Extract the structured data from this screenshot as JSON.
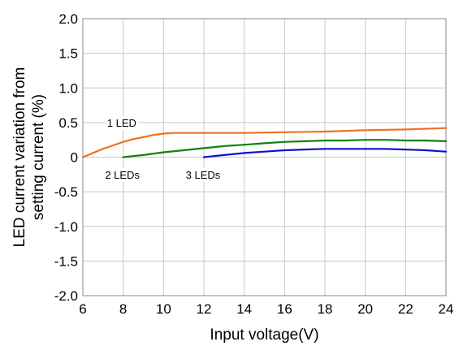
{
  "chart_data": {
    "type": "line",
    "title": "",
    "xlabel": "Input voltage(V)",
    "ylabel_lines": [
      "LED current  variation from",
      "setting current (%)"
    ],
    "xlim": [
      6,
      24
    ],
    "ylim": [
      -2.0,
      2.0
    ],
    "x_ticks": [
      6,
      8,
      10,
      12,
      14,
      16,
      18,
      20,
      22,
      24
    ],
    "x_tick_labels": [
      "6",
      "8",
      "10",
      "12",
      "14",
      "16",
      "18",
      "20",
      "22",
      "24"
    ],
    "y_ticks": [
      2.0,
      1.5,
      1.0,
      0.5,
      0,
      -0.5,
      -1.0,
      -1.5,
      -2.0
    ],
    "y_tick_labels": [
      "2.0",
      "1.5",
      "1.0",
      "0.5",
      "0",
      "-0.5",
      "-1.0",
      "-1.5",
      "-2.0"
    ],
    "grid": true,
    "legend": "none",
    "series": [
      {
        "name": "1 LED",
        "color": "#f07020",
        "x": [
          6,
          6.5,
          7,
          7.5,
          8,
          8.5,
          9,
          9.5,
          10,
          10.5,
          11,
          12,
          14,
          16,
          18,
          20,
          22,
          24
        ],
        "y": [
          0.0,
          0.06,
          0.12,
          0.17,
          0.22,
          0.26,
          0.29,
          0.32,
          0.34,
          0.35,
          0.35,
          0.35,
          0.35,
          0.36,
          0.37,
          0.39,
          0.4,
          0.42
        ]
      },
      {
        "name": "2 LEDs",
        "color": "#108010",
        "x": [
          8,
          9,
          10,
          11,
          12,
          13,
          14,
          15,
          16,
          17,
          18,
          19,
          20,
          21,
          22,
          23,
          24
        ],
        "y": [
          0.0,
          0.03,
          0.07,
          0.1,
          0.13,
          0.16,
          0.18,
          0.2,
          0.22,
          0.23,
          0.24,
          0.24,
          0.25,
          0.25,
          0.24,
          0.24,
          0.23
        ]
      },
      {
        "name": "3 LEDs",
        "color": "#1010d0",
        "x": [
          12,
          13,
          14,
          15,
          16,
          17,
          18,
          19,
          20,
          21,
          22,
          23,
          24
        ],
        "y": [
          0.0,
          0.03,
          0.06,
          0.08,
          0.1,
          0.11,
          0.12,
          0.12,
          0.12,
          0.12,
          0.11,
          0.1,
          0.08
        ]
      }
    ],
    "annotations": [
      {
        "text": "1 LED",
        "x": 7.2,
        "y": 0.5
      },
      {
        "text": "2 LEDs",
        "x": 7.1,
        "y": -0.25
      },
      {
        "text": "3 LEDs",
        "x": 11.1,
        "y": -0.25
      }
    ]
  }
}
